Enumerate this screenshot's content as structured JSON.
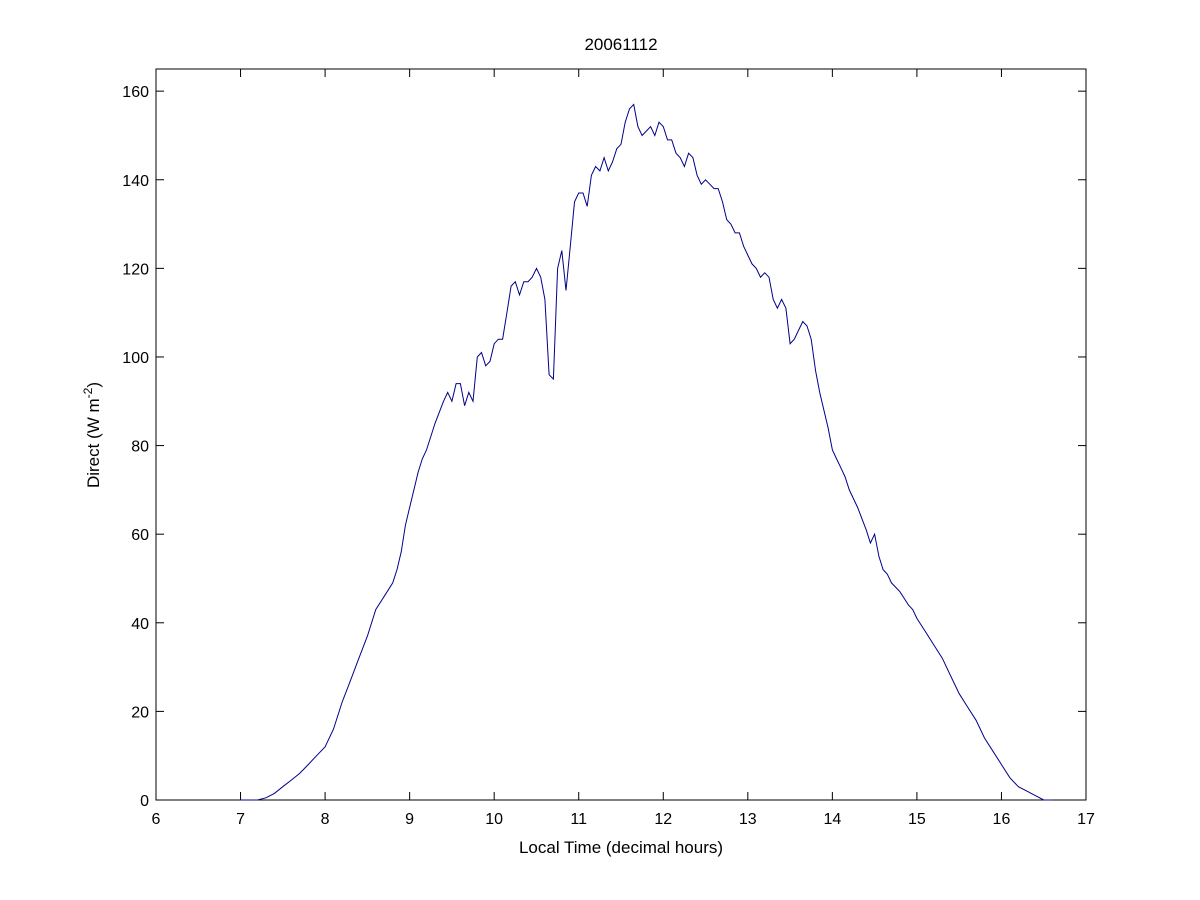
{
  "chart_data": {
    "type": "line",
    "title": "20061112",
    "xlabel": "Local Time (decimal hours)",
    "ylabel_main": "Direct (W m",
    "ylabel_sup": "-2",
    "ylabel_close": ")",
    "xlim": [
      6,
      17
    ],
    "ylim": [
      0,
      165
    ],
    "xticks": [
      6,
      7,
      8,
      9,
      10,
      11,
      12,
      13,
      14,
      15,
      16,
      17
    ],
    "yticks": [
      0,
      20,
      40,
      60,
      80,
      100,
      120,
      140,
      160
    ],
    "grid": false,
    "line_color": "#00008b",
    "series": [
      {
        "x": [
          7.0,
          7.1,
          7.2,
          7.3,
          7.4,
          7.5,
          7.6,
          7.7,
          7.8,
          7.9,
          8.0,
          8.1,
          8.2,
          8.3,
          8.4,
          8.5,
          8.6,
          8.7,
          8.8,
          8.85,
          8.9,
          8.95,
          9.0,
          9.05,
          9.1,
          9.15,
          9.2,
          9.3,
          9.4,
          9.45,
          9.5,
          9.55,
          9.6,
          9.65,
          9.7,
          9.75,
          9.8,
          9.85,
          9.9,
          9.95,
          10.0,
          10.05,
          10.1,
          10.15,
          10.2,
          10.25,
          10.3,
          10.35,
          10.4,
          10.45,
          10.5,
          10.55,
          10.6,
          10.65,
          10.7,
          10.75,
          10.8,
          10.85,
          10.9,
          10.95,
          11.0,
          11.05,
          11.1,
          11.15,
          11.2,
          11.25,
          11.3,
          11.35,
          11.4,
          11.45,
          11.5,
          11.55,
          11.6,
          11.65,
          11.7,
          11.75,
          11.8,
          11.85,
          11.9,
          11.95,
          12.0,
          12.05,
          12.1,
          12.15,
          12.2,
          12.25,
          12.3,
          12.35,
          12.4,
          12.45,
          12.5,
          12.55,
          12.6,
          12.65,
          12.7,
          12.75,
          12.8,
          12.85,
          12.9,
          12.95,
          13.0,
          13.05,
          13.1,
          13.15,
          13.2,
          13.25,
          13.3,
          13.35,
          13.4,
          13.45,
          13.5,
          13.55,
          13.6,
          13.65,
          13.7,
          13.75,
          13.8,
          13.85,
          13.9,
          13.95,
          14.0,
          14.05,
          14.1,
          14.15,
          14.2,
          14.3,
          14.4,
          14.45,
          14.5,
          14.55,
          14.6,
          14.65,
          14.7,
          14.8,
          14.9,
          14.95,
          15.0,
          15.1,
          15.2,
          15.3,
          15.4,
          15.5,
          15.6,
          15.7,
          15.8,
          15.9,
          16.0,
          16.1,
          16.2,
          16.3,
          16.4,
          16.5,
          16.6
        ],
        "y": [
          0,
          0,
          0,
          0.5,
          1.5,
          3,
          4.5,
          6,
          8,
          10,
          12,
          16,
          22,
          27,
          32,
          37,
          43,
          46,
          49,
          52,
          56,
          62,
          66,
          70,
          74,
          77,
          79,
          85,
          90,
          92,
          90,
          94,
          94,
          89,
          92,
          90,
          100,
          101,
          98,
          99,
          103,
          104,
          104,
          110,
          116,
          117,
          114,
          117,
          117,
          118,
          120,
          118,
          113,
          96,
          95,
          120,
          124,
          115,
          125,
          135,
          137,
          137,
          134,
          141,
          143,
          142,
          145,
          142,
          144,
          147,
          148,
          153,
          156,
          157,
          152,
          150,
          151,
          152,
          150,
          153,
          152,
          149,
          149,
          146,
          145,
          143,
          146,
          145,
          141,
          139,
          140,
          139,
          138,
          138,
          135,
          131,
          130,
          128,
          128,
          125,
          123,
          121,
          120,
          118,
          119,
          118,
          113,
          111,
          113,
          111,
          103,
          104,
          106,
          108,
          107,
          104,
          97,
          92,
          88,
          84,
          79,
          77,
          75,
          73,
          70,
          66,
          61,
          58,
          60,
          55,
          52,
          51,
          49,
          47,
          44,
          43,
          41,
          38,
          35,
          32,
          28,
          24,
          21,
          18,
          14,
          11,
          8,
          5,
          3,
          2,
          1,
          0,
          0
        ]
      }
    ]
  }
}
